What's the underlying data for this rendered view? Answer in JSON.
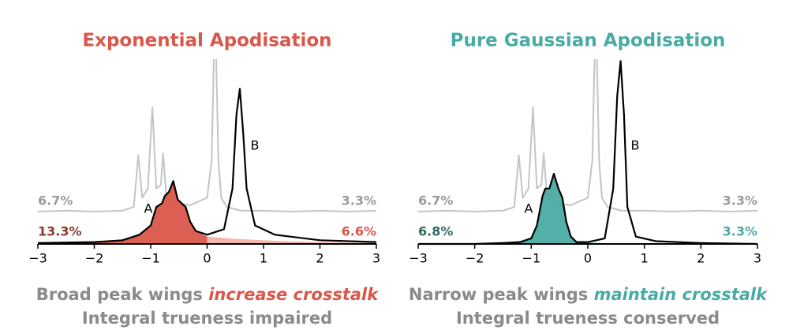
{
  "chart_data": [
    {
      "type": "line",
      "title": "Exponential Apodisation",
      "title_color": "#d9574a",
      "xlim": [
        -3,
        3
      ],
      "xticks": [
        {
          "value": -3,
          "label": "−3"
        },
        {
          "value": -2,
          "label": "−2"
        },
        {
          "value": -1,
          "label": "−1"
        },
        0,
        1,
        2,
        3
      ],
      "ylim": [
        0,
        1
      ],
      "series": [
        {
          "style": "line",
          "color": "#c4c4c4",
          "x": [
            -3,
            -2.5,
            -2,
            -1.5,
            -1.3,
            -1.22,
            -1.15,
            -1.05,
            -0.97,
            -0.9,
            -0.82,
            -0.78,
            -0.72,
            -0.6,
            -0.3,
            0,
            0.08,
            0.14,
            0.2,
            0.25,
            0.35,
            0.6,
            1,
            1.5,
            2,
            2.5,
            3
          ],
          "values": [
            0.175,
            0.18,
            0.175,
            0.18,
            0.2,
            0.48,
            0.25,
            0.3,
            0.74,
            0.3,
            0.32,
            0.49,
            0.25,
            0.22,
            0.21,
            0.25,
            0.45,
            1.3,
            0.45,
            0.25,
            0.2,
            0.18,
            0.18,
            0.175,
            0.18,
            0.175,
            0.18
          ]
        },
        {
          "style": "area",
          "color": "#d9574a",
          "x": [
            -3,
            -2,
            -1.5,
            -1.2,
            -1,
            -0.9,
            -0.8,
            -0.75,
            -0.68,
            -0.6,
            -0.52,
            -0.45,
            -0.38,
            -0.3,
            -0.2,
            0
          ],
          "values": [
            0.005,
            0.01,
            0.02,
            0.05,
            0.1,
            0.2,
            0.22,
            0.26,
            0.28,
            0.34,
            0.24,
            0.22,
            0.2,
            0.12,
            0.07,
            0.04
          ]
        },
        {
          "style": "area",
          "color": "#f0b3ab",
          "x": [
            0,
            0.5,
            1,
            1.5,
            2,
            2.5,
            3
          ],
          "values": [
            0.04,
            0.028,
            0.02,
            0.014,
            0.01,
            0.007,
            0.005
          ]
        },
        {
          "style": "line",
          "color": "#000000",
          "x": [
            -3,
            -2,
            -1.5,
            -1.2,
            -1,
            -0.9,
            -0.8,
            -0.75,
            -0.68,
            -0.6,
            -0.52,
            -0.45,
            -0.38,
            -0.3,
            -0.2,
            0,
            0.3,
            0.45,
            0.52,
            0.58,
            0.64,
            0.7,
            0.85,
            1.2,
            2,
            3
          ],
          "values": [
            0.005,
            0.01,
            0.02,
            0.05,
            0.1,
            0.2,
            0.22,
            0.26,
            0.28,
            0.34,
            0.24,
            0.22,
            0.2,
            0.12,
            0.07,
            0.05,
            0.08,
            0.3,
            0.7,
            0.84,
            0.6,
            0.3,
            0.1,
            0.05,
            0.02,
            0.01
          ]
        }
      ],
      "annotations": [
        {
          "text": "6.7%",
          "color": "#9a9a9a"
        },
        {
          "text": "3.3%",
          "color": "#9a9a9a"
        },
        {
          "text": "13.3%",
          "color": "#8b3a2e"
        },
        {
          "text": "6.6%",
          "color": "#d9574a"
        },
        {
          "text": "A",
          "color": "#000000"
        },
        {
          "text": "B",
          "color": "#000000"
        }
      ],
      "caption": {
        "plain": "Broad peak wings ",
        "highlight": "increase crosstalk",
        "line2": "Integral trueness impaired"
      }
    },
    {
      "type": "line",
      "title": "Pure Gaussian Apodisation",
      "title_color": "#4aaba3",
      "xlim": [
        -3,
        3
      ],
      "xticks": [
        {
          "value": -3,
          "label": "−3"
        },
        {
          "value": -2,
          "label": "−2"
        },
        {
          "value": -1,
          "label": "−1"
        },
        0,
        1,
        2,
        3
      ],
      "ylim": [
        0,
        1
      ],
      "series": [
        {
          "style": "line",
          "color": "#c4c4c4",
          "x": [
            -3,
            -2.5,
            -2,
            -1.5,
            -1.3,
            -1.22,
            -1.15,
            -1.05,
            -0.97,
            -0.9,
            -0.82,
            -0.78,
            -0.72,
            -0.6,
            -0.3,
            0,
            0.08,
            0.14,
            0.2,
            0.25,
            0.35,
            0.6,
            1,
            1.5,
            2,
            2.5,
            3
          ],
          "values": [
            0.175,
            0.18,
            0.175,
            0.18,
            0.2,
            0.48,
            0.25,
            0.3,
            0.74,
            0.3,
            0.32,
            0.49,
            0.25,
            0.22,
            0.21,
            0.25,
            0.45,
            1.3,
            0.45,
            0.25,
            0.2,
            0.18,
            0.18,
            0.175,
            0.18,
            0.175,
            0.18
          ]
        },
        {
          "style": "area",
          "color": "#4aaba3",
          "x": [
            -3,
            -2,
            -1.5,
            -1.2,
            -1,
            -0.9,
            -0.8,
            -0.75,
            -0.68,
            -0.6,
            -0.52,
            -0.45,
            -0.38,
            -0.3,
            -0.2,
            0
          ],
          "values": [
            0,
            0,
            0.005,
            0.01,
            0.03,
            0.1,
            0.26,
            0.3,
            0.3,
            0.38,
            0.3,
            0.25,
            0.12,
            0.04,
            0.01,
            0.01
          ]
        },
        {
          "style": "area",
          "color": "#a6dcd6",
          "x": [
            0,
            0.2,
            0.4,
            0.6
          ],
          "values": [
            0.01,
            0.006,
            0.003,
            0
          ]
        },
        {
          "style": "line",
          "color": "#000000",
          "x": [
            -3,
            -2,
            -1.5,
            -1.2,
            -1,
            -0.9,
            -0.8,
            -0.75,
            -0.68,
            -0.6,
            -0.52,
            -0.45,
            -0.38,
            -0.3,
            -0.2,
            0,
            0.3,
            0.45,
            0.52,
            0.58,
            0.64,
            0.7,
            0.85,
            1.2,
            2,
            3
          ],
          "values": [
            0,
            0,
            0.005,
            0.01,
            0.03,
            0.1,
            0.26,
            0.3,
            0.3,
            0.38,
            0.3,
            0.25,
            0.12,
            0.04,
            0.01,
            0.01,
            0.03,
            0.3,
            0.8,
            0.99,
            0.7,
            0.2,
            0.04,
            0.015,
            0.005,
            0
          ]
        }
      ],
      "annotations": [
        {
          "text": "6.7%",
          "color": "#9a9a9a"
        },
        {
          "text": "3.3%",
          "color": "#9a9a9a"
        },
        {
          "text": "6.8%",
          "color": "#2b6e62"
        },
        {
          "text": "3.3%",
          "color": "#4aaba3"
        },
        {
          "text": "A",
          "color": "#000000"
        },
        {
          "text": "B",
          "color": "#000000"
        }
      ],
      "caption": {
        "plain": "Narrow peak wings ",
        "highlight": "maintain crosstalk",
        "line2": "Integral trueness conserved"
      }
    }
  ]
}
